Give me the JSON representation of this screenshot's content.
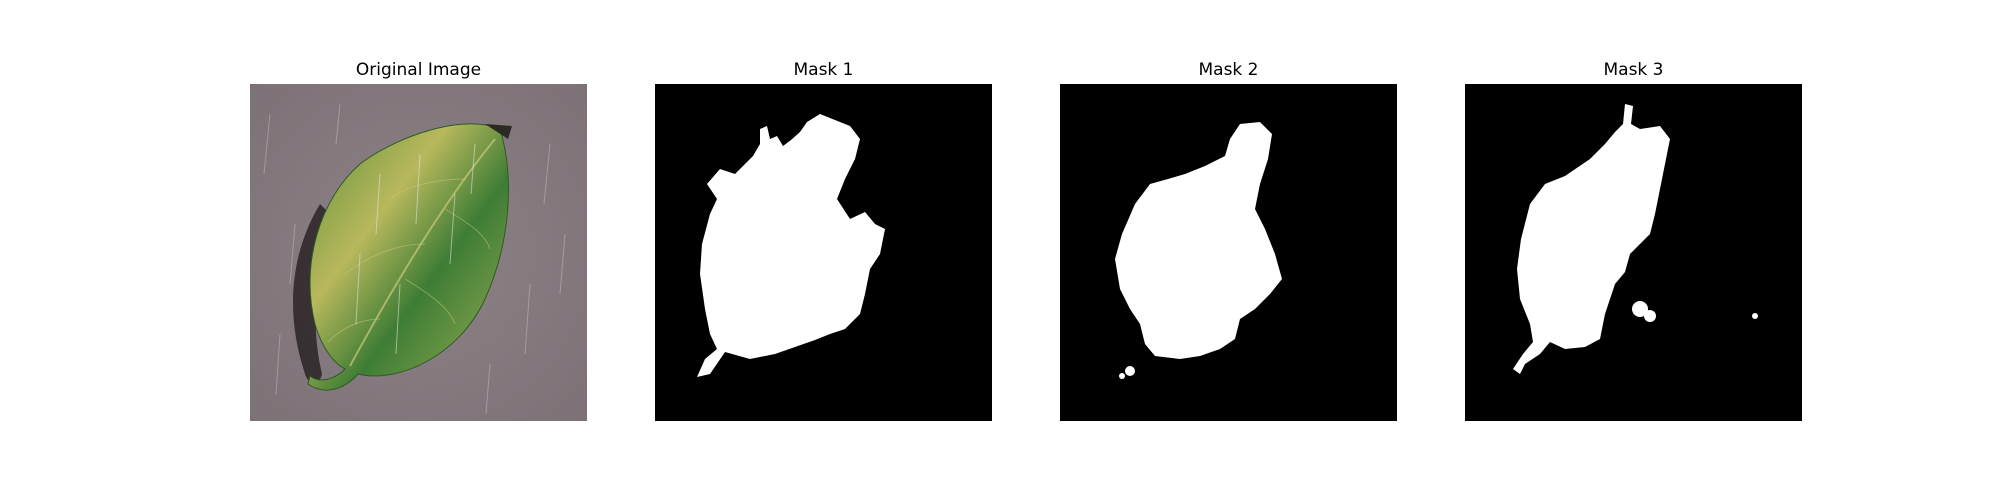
{
  "figure": {
    "panels": [
      {
        "title": "Original Image"
      },
      {
        "title": "Mask 1"
      },
      {
        "title": "Mask 2"
      },
      {
        "title": "Mask 3"
      }
    ]
  },
  "colors": {
    "background": "#8a7f84",
    "leaf_light": "#b9b95a",
    "leaf_dark": "#3f7f36",
    "mask_bg": "#000000",
    "mask_fg": "#ffffff"
  }
}
